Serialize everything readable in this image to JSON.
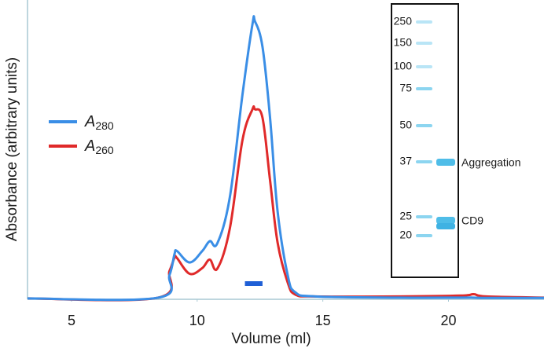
{
  "chart_data": {
    "type": "line",
    "x_label": "Volume (ml)",
    "y_label": "Absorbance (arbitrary units)",
    "x": [
      3.25,
      8.4,
      8.9,
      9.1,
      9.2,
      9.7,
      10.2,
      10.5,
      10.8,
      11.3,
      11.8,
      12.2,
      12.3,
      12.6,
      12.9,
      13.2,
      13.6,
      13.9,
      14.7,
      18,
      20.5,
      21,
      21.5,
      23.8
    ],
    "series": [
      {
        "name": "A280",
        "color": "#3a8ee6",
        "values": [
          0.3,
          0.5,
          8.6,
          16,
          17,
          13,
          17,
          20.5,
          19.7,
          36,
          72,
          97,
          98,
          89,
          64,
          31,
          8.6,
          2.5,
          1,
          0.6,
          0.6,
          0.6,
          0.5,
          0.5
        ]
      },
      {
        "name": "A260",
        "color": "#e02a2a",
        "values": [
          0.3,
          0.5,
          10,
          14.7,
          14.5,
          9,
          11,
          14,
          10.8,
          25,
          56,
          67,
          67,
          64,
          42,
          20,
          6,
          1.7,
          1,
          1,
          1.3,
          1.8,
          1,
          0.6
        ]
      }
    ],
    "xlim": [
      3.25,
      23.8
    ],
    "ylim": [
      0,
      100
    ],
    "xticks": [
      5,
      10,
      15,
      20
    ],
    "highlight": {
      "x": [
        11.9,
        12.6
      ],
      "color": "#1f5fd6"
    },
    "inset": {
      "ladder": [
        250,
        150,
        100,
        75,
        50,
        37,
        25,
        20
      ],
      "bands": [
        "Aggregation",
        "CD9"
      ]
    }
  }
}
